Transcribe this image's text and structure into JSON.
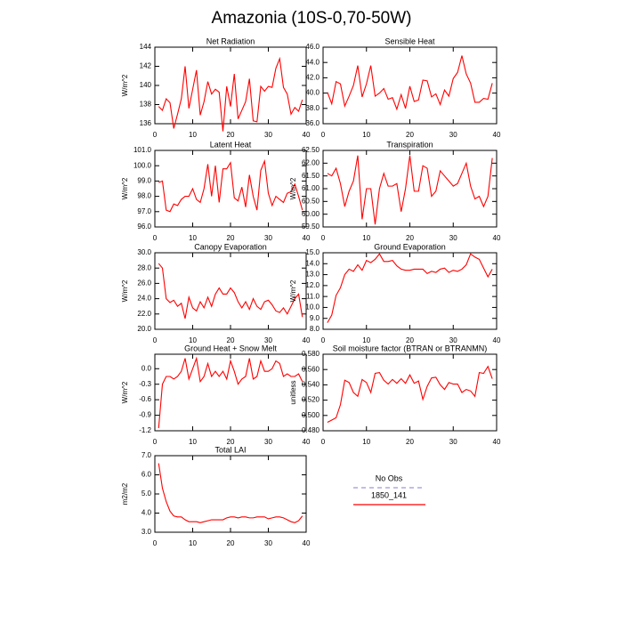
{
  "title": "Amazonia (10S-0,70-50W)",
  "legend": [
    {
      "name": "No Obs",
      "color": "#9999dd",
      "dash": true
    },
    {
      "name": "1850_141",
      "color": "#ff0000",
      "dash": false
    }
  ],
  "chart_data": [
    {
      "type": "line",
      "title": "Net Radiation",
      "y_label": "W/m^2",
      "color": "#ff0000",
      "x": [
        1,
        2,
        3,
        4,
        5,
        6,
        7,
        8,
        9,
        10,
        11,
        12,
        13,
        14,
        15,
        16,
        17,
        18,
        19,
        20,
        21,
        22,
        23,
        24,
        25,
        26,
        27,
        28,
        29,
        30,
        31,
        32,
        33,
        34,
        35,
        36,
        37,
        38,
        39
      ],
      "values": [
        137.8,
        137.4,
        138.6,
        138.2,
        135.5,
        137,
        138.6,
        142,
        137.6,
        139.6,
        141.6,
        136.9,
        138.3,
        140.4,
        139.1,
        139.6,
        139.3,
        135.2,
        139.9,
        137.8,
        141.2,
        136.5,
        137.4,
        138.3,
        140.7,
        136.3,
        136.2,
        139.9,
        139.4,
        139.9,
        139.8,
        141.8,
        142.8,
        139.8,
        139.1,
        137,
        137.7,
        137.3,
        138.5
      ],
      "xlim": [
        0,
        40
      ],
      "xticks": [
        0,
        10,
        20,
        30,
        40
      ],
      "ylim": [
        136,
        144
      ],
      "yticks": [
        136,
        138,
        140,
        142,
        144
      ]
    },
    {
      "type": "line",
      "title": "Sensible Heat",
      "color": "#ff0000",
      "x": [
        1,
        2,
        3,
        4,
        5,
        6,
        7,
        8,
        9,
        10,
        11,
        12,
        13,
        14,
        15,
        16,
        17,
        18,
        19,
        20,
        21,
        22,
        23,
        24,
        25,
        26,
        27,
        28,
        29,
        30,
        31,
        32,
        33,
        34,
        35,
        36,
        37,
        38,
        39
      ],
      "values": [
        40.1,
        38.6,
        41.5,
        41.2,
        38.3,
        39.6,
        41,
        43.6,
        39.5,
        41.2,
        43.6,
        39.6,
        40,
        40.6,
        39.2,
        39.4,
        37.9,
        39.8,
        38,
        40.9,
        38.9,
        39.1,
        41.7,
        41.6,
        39.5,
        39.9,
        38.5,
        40.4,
        39.6,
        41.9,
        42.7,
        44.9,
        42.5,
        41.3,
        38.8,
        38.8,
        39.3,
        39.2,
        41.3
      ],
      "xlim": [
        0,
        40
      ],
      "xticks": [
        0,
        10,
        20,
        30,
        40
      ],
      "ylim": [
        36,
        46
      ],
      "yticks": [
        {
          "value": 36,
          "label": "36.0"
        },
        {
          "value": 38,
          "label": "38.0"
        },
        {
          "value": 40,
          "label": "40.0"
        },
        {
          "value": 42,
          "label": "42.0"
        },
        {
          "value": 44,
          "label": "44.0"
        },
        {
          "value": 46,
          "label": "46.0"
        }
      ]
    },
    {
      "type": "line",
      "title": "Latent Heat",
      "y_label": "W/m^2",
      "color": "#ff0000",
      "x": [
        1,
        2,
        3,
        4,
        5,
        6,
        7,
        8,
        9,
        10,
        11,
        12,
        13,
        14,
        15,
        16,
        17,
        18,
        19,
        20,
        21,
        22,
        23,
        24,
        25,
        26,
        27,
        28,
        29,
        30,
        31,
        32,
        33,
        34,
        35,
        36,
        37,
        38,
        39
      ],
      "values": [
        98.9,
        99,
        97.1,
        97,
        97.5,
        97.4,
        97.8,
        98,
        98,
        98.5,
        97.8,
        97.6,
        98.5,
        100.1,
        98,
        100,
        97.6,
        99.8,
        99.8,
        100.2,
        97.9,
        97.7,
        98.6,
        97.3,
        99.4,
        98,
        97.1,
        99.7,
        100.3,
        98.2,
        97.4,
        98,
        97.8,
        97.6,
        98.2,
        98.3,
        98.8,
        98,
        97.1
      ],
      "xlim": [
        0,
        40
      ],
      "xticks": [
        0,
        10,
        20,
        30,
        40
      ],
      "ylim": [
        96,
        101
      ],
      "yticks": [
        {
          "value": 96,
          "label": "96.0"
        },
        {
          "value": 97,
          "label": "97.0"
        },
        {
          "value": 98,
          "label": "98.0"
        },
        {
          "value": 99,
          "label": "99.0"
        },
        {
          "value": 100,
          "label": "100.0"
        },
        {
          "value": 101,
          "label": "101.0"
        }
      ]
    },
    {
      "type": "line",
      "title": "Transpiration",
      "y_label": "W/m^2",
      "color": "#ff0000",
      "x": [
        1,
        2,
        3,
        4,
        5,
        6,
        7,
        8,
        9,
        10,
        11,
        12,
        13,
        14,
        15,
        16,
        17,
        18,
        19,
        20,
        21,
        22,
        23,
        24,
        25,
        26,
        27,
        28,
        29,
        30,
        31,
        32,
        33,
        34,
        35,
        36,
        37,
        38,
        39
      ],
      "values": [
        61.6,
        61.5,
        61.8,
        61.2,
        60.3,
        60.9,
        61.3,
        62.3,
        59.8,
        61,
        61,
        59.6,
        61,
        61.6,
        61.1,
        61.1,
        61.2,
        60.1,
        61,
        62.3,
        60.9,
        60.9,
        61.9,
        61.8,
        60.7,
        60.9,
        61.7,
        61.5,
        61.3,
        61.1,
        61.2,
        61.6,
        62,
        61.1,
        60.6,
        60.7,
        60.3,
        60.7,
        62.2
      ],
      "xlim": [
        0,
        40
      ],
      "xticks": [
        0,
        10,
        20,
        30,
        40
      ],
      "ylim": [
        59.5,
        62.5
      ],
      "yticks": [
        {
          "value": 59.5,
          "label": "59.50"
        },
        {
          "value": 60,
          "label": "60.00"
        },
        {
          "value": 60.5,
          "label": "60.50"
        },
        {
          "value": 61,
          "label": "61.00"
        },
        {
          "value": 61.5,
          "label": "61.50"
        },
        {
          "value": 62,
          "label": "62.00"
        },
        {
          "value": 62.5,
          "label": "62.50"
        }
      ]
    },
    {
      "type": "line",
      "title": "Canopy Evaporation",
      "y_label": "W/m^2",
      "color": "#ff0000",
      "x": [
        1,
        2,
        3,
        4,
        5,
        6,
        7,
        8,
        9,
        10,
        11,
        12,
        13,
        14,
        15,
        16,
        17,
        18,
        19,
        20,
        21,
        22,
        23,
        24,
        25,
        26,
        27,
        28,
        29,
        30,
        31,
        32,
        33,
        34,
        35,
        36,
        37,
        38,
        39
      ],
      "values": [
        28.6,
        28,
        24,
        23.5,
        23.8,
        23,
        23.4,
        21.4,
        24.2,
        22.8,
        22.4,
        23.6,
        22.8,
        24.2,
        23,
        24.6,
        25.4,
        24.6,
        24.6,
        25.4,
        24.8,
        23.6,
        22.8,
        23.6,
        22.6,
        24,
        23,
        22.6,
        23.6,
        23.8,
        23.2,
        22.4,
        22.2,
        22.8,
        22,
        23,
        24,
        24.6,
        21.6
      ],
      "xlim": [
        0,
        40
      ],
      "xticks": [
        0,
        10,
        20,
        30,
        40
      ],
      "ylim": [
        20,
        30
      ],
      "yticks": [
        {
          "value": 20,
          "label": "20.0"
        },
        {
          "value": 22,
          "label": "22.0"
        },
        {
          "value": 24,
          "label": "24.0"
        },
        {
          "value": 26,
          "label": "26.0"
        },
        {
          "value": 28,
          "label": "28.0"
        },
        {
          "value": 30,
          "label": "30.0"
        }
      ]
    },
    {
      "type": "line",
      "title": "Ground Evaporation",
      "y_label": "W/m^2",
      "color": "#ff0000",
      "x": [
        1,
        2,
        3,
        4,
        5,
        6,
        7,
        8,
        9,
        10,
        11,
        12,
        13,
        14,
        15,
        16,
        17,
        18,
        19,
        20,
        21,
        22,
        23,
        24,
        25,
        26,
        27,
        28,
        29,
        30,
        31,
        32,
        33,
        34,
        35,
        36,
        37,
        38,
        39
      ],
      "values": [
        8.6,
        9.3,
        11.1,
        11.8,
        13,
        13.5,
        13.3,
        13.9,
        13.4,
        14.3,
        14.1,
        14.4,
        14.9,
        14.2,
        14.2,
        14.3,
        13.8,
        13.5,
        13.4,
        13.4,
        13.5,
        13.5,
        13.5,
        13.1,
        13.3,
        13.2,
        13.5,
        13.6,
        13.2,
        13.4,
        13.3,
        13.5,
        13.9,
        14.9,
        14.6,
        14.4,
        13.6,
        12.8,
        13.5
      ],
      "xlim": [
        0,
        40
      ],
      "xticks": [
        0,
        10,
        20,
        30,
        40
      ],
      "ylim": [
        8,
        15
      ],
      "yticks": [
        {
          "value": 8,
          "label": "8.0"
        },
        {
          "value": 9,
          "label": "9.0"
        },
        {
          "value": 10,
          "label": "10.0"
        },
        {
          "value": 11,
          "label": "11.0"
        },
        {
          "value": 12,
          "label": "12.0"
        },
        {
          "value": 13,
          "label": "13.0"
        },
        {
          "value": 14,
          "label": "14.0"
        },
        {
          "value": 15,
          "label": "15.0"
        }
      ]
    },
    {
      "type": "line",
      "title": "Ground Heat + Snow Melt",
      "y_label": "W/m^2",
      "color": "#ff0000",
      "x": [
        1,
        2,
        3,
        4,
        5,
        6,
        7,
        8,
        9,
        10,
        11,
        12,
        13,
        14,
        15,
        16,
        17,
        18,
        19,
        20,
        21,
        22,
        23,
        24,
        25,
        26,
        27,
        28,
        29,
        30,
        31,
        32,
        33,
        34,
        35,
        36,
        37,
        38,
        39
      ],
      "values": [
        -1.15,
        -0.3,
        -0.15,
        -0.15,
        -0.2,
        -0.15,
        -0.05,
        0.2,
        -0.2,
        0,
        0.2,
        -0.25,
        -0.15,
        0.1,
        -0.15,
        -0.05,
        -0.15,
        -0.05,
        -0.2,
        0.15,
        -0.05,
        -0.3,
        -0.2,
        -0.15,
        0.2,
        -0.2,
        -0.15,
        0.15,
        -0.05,
        -0.05,
        0,
        0.15,
        0.1,
        -0.15,
        -0.1,
        -0.15,
        -0.15,
        -0.1,
        -0.25
      ],
      "xlim": [
        0,
        40
      ],
      "xticks": [
        0,
        10,
        20,
        30,
        40
      ],
      "ylim": [
        -1.2,
        0.28
      ],
      "yticks": [
        -1.2,
        -0.9,
        -0.6,
        -0.3,
        {
          "value": 0,
          "label": "0.0"
        }
      ]
    },
    {
      "type": "line",
      "title": "Soil moisture factor (BTRAN or BTRANMN)",
      "y_label": "unitless",
      "color": "#ff0000",
      "x": [
        1,
        2,
        3,
        4,
        5,
        6,
        7,
        8,
        9,
        10,
        11,
        12,
        13,
        14,
        15,
        16,
        17,
        18,
        19,
        20,
        21,
        22,
        23,
        24,
        25,
        26,
        27,
        28,
        29,
        30,
        31,
        32,
        33,
        34,
        35,
        36,
        37,
        38,
        39
      ],
      "values": [
        0.491,
        0.494,
        0.497,
        0.514,
        0.546,
        0.543,
        0.53,
        0.525,
        0.547,
        0.543,
        0.53,
        0.555,
        0.556,
        0.546,
        0.541,
        0.547,
        0.542,
        0.548,
        0.542,
        0.553,
        0.542,
        0.545,
        0.521,
        0.538,
        0.549,
        0.55,
        0.54,
        0.534,
        0.543,
        0.541,
        0.541,
        0.53,
        0.534,
        0.532,
        0.525,
        0.556,
        0.555,
        0.564,
        0.548
      ],
      "xlim": [
        0,
        40
      ],
      "xticks": [
        0,
        10,
        20,
        30,
        40
      ],
      "ylim": [
        0.48,
        0.58
      ],
      "yticks": [
        {
          "value": 0.48,
          "label": "0.480"
        },
        {
          "value": 0.5,
          "label": "0.500"
        },
        {
          "value": 0.52,
          "label": "0.520"
        },
        {
          "value": 0.54,
          "label": "0.540"
        },
        {
          "value": 0.56,
          "label": "0.560"
        },
        {
          "value": 0.58,
          "label": "0.580"
        }
      ]
    },
    {
      "type": "line",
      "title": "Total LAI",
      "y_label": "m2/m2",
      "color": "#ff0000",
      "x": [
        1,
        2,
        3,
        4,
        5,
        6,
        7,
        8,
        9,
        10,
        11,
        12,
        13,
        14,
        15,
        16,
        17,
        18,
        19,
        20,
        21,
        22,
        23,
        24,
        25,
        26,
        27,
        28,
        29,
        30,
        31,
        32,
        33,
        34,
        35,
        36,
        37,
        38,
        39
      ],
      "values": [
        6.6,
        5.3,
        4.6,
        4.1,
        3.85,
        3.8,
        3.8,
        3.65,
        3.55,
        3.55,
        3.55,
        3.5,
        3.55,
        3.6,
        3.65,
        3.65,
        3.65,
        3.65,
        3.75,
        3.8,
        3.8,
        3.75,
        3.8,
        3.8,
        3.75,
        3.75,
        3.8,
        3.8,
        3.8,
        3.7,
        3.75,
        3.8,
        3.8,
        3.75,
        3.65,
        3.55,
        3.5,
        3.6,
        3.85
      ],
      "xlim": [
        0,
        40
      ],
      "xticks": [
        0,
        10,
        20,
        30,
        40
      ],
      "ylim": [
        3,
        7
      ],
      "yticks": [
        {
          "value": 3,
          "label": "3.0"
        },
        {
          "value": 4,
          "label": "4.0"
        },
        {
          "value": 5,
          "label": "5.0"
        },
        {
          "value": 6,
          "label": "6.0"
        },
        {
          "value": 7,
          "label": "7.0"
        }
      ]
    }
  ]
}
